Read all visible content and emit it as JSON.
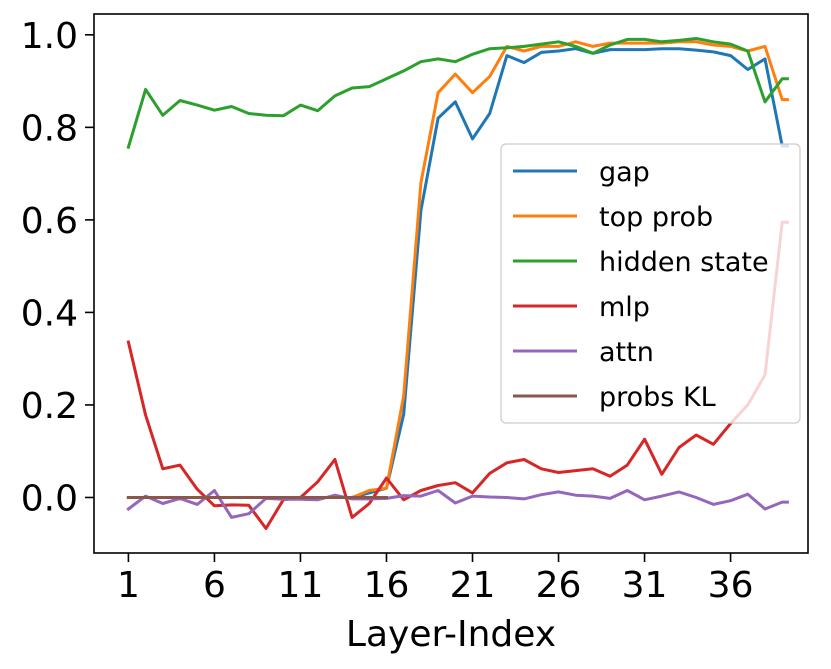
{
  "chart_data": {
    "type": "line",
    "title": "",
    "xlabel": "Layer-Index",
    "ylabel": "",
    "xlim": [
      -1,
      40.5
    ],
    "ylim": [
      -0.12,
      1.045
    ],
    "xticks": [
      1,
      6,
      11,
      16,
      21,
      26,
      31,
      36
    ],
    "yticks": [
      0.0,
      0.2,
      0.4,
      0.6,
      0.8,
      1.0
    ],
    "ytick_labels": [
      "0.0",
      "0.2",
      "0.4",
      "0.6",
      "0.8",
      "1.0"
    ],
    "grid": false,
    "legend_position": "center-right",
    "x": [
      1,
      2,
      3,
      4,
      5,
      6,
      7,
      8,
      9,
      10,
      11,
      12,
      13,
      14,
      15,
      16,
      17,
      18,
      19,
      20,
      21,
      22,
      23,
      24,
      25,
      26,
      27,
      28,
      29,
      30,
      31,
      32,
      33,
      34,
      35,
      36,
      37,
      38,
      39,
      40
    ],
    "series": [
      {
        "name": "gap",
        "color": "#1f77b4",
        "values": [
          0,
          0,
          0,
          0,
          0,
          0,
          0,
          0,
          0,
          0,
          0,
          0,
          0,
          0,
          0.01,
          0.02,
          0.18,
          0.62,
          0.82,
          0.855,
          0.775,
          0.83,
          0.955,
          0.94,
          0.962,
          0.965,
          0.97,
          0.96,
          0.968,
          0.968,
          0.968,
          0.97,
          0.97,
          0.967,
          0.963,
          0.955,
          0.925,
          0.948,
          0.76,
          0.76
        ]
      },
      {
        "name": "top prob",
        "color": "#ff7f0e",
        "values": [
          0,
          0,
          0,
          0,
          0,
          0,
          0,
          0,
          0,
          0,
          0,
          0,
          0,
          0,
          0.015,
          0.02,
          0.22,
          0.68,
          0.875,
          0.915,
          0.875,
          0.91,
          0.975,
          0.965,
          0.975,
          0.975,
          0.985,
          0.975,
          0.982,
          0.982,
          0.982,
          0.982,
          0.985,
          0.985,
          0.978,
          0.975,
          0.965,
          0.975,
          0.86,
          0.86
        ]
      },
      {
        "name": "hidden state",
        "color": "#2ca02c",
        "values": [
          0.757,
          0.882,
          0.826,
          0.858,
          0.848,
          0.837,
          0.845,
          0.83,
          0.826,
          0.825,
          0.848,
          0.836,
          0.868,
          0.885,
          0.888,
          0.905,
          0.922,
          0.942,
          0.948,
          0.942,
          0.958,
          0.97,
          0.972,
          0.975,
          0.98,
          0.985,
          0.975,
          0.96,
          0.978,
          0.99,
          0.99,
          0.985,
          0.988,
          0.992,
          0.985,
          0.98,
          0.965,
          0.855,
          0.905,
          0.905
        ]
      },
      {
        "name": "mlp",
        "color": "#d62728",
        "values": [
          0.336,
          0.178,
          0.062,
          0.07,
          0.018,
          -0.018,
          -0.016,
          -0.017,
          -0.067,
          -0.005,
          0.0,
          0.034,
          0.082,
          -0.043,
          -0.013,
          0.042,
          -0.005,
          0.015,
          0.026,
          0.032,
          0.01,
          0.052,
          0.075,
          0.082,
          0.062,
          0.054,
          0.058,
          0.062,
          0.046,
          0.07,
          0.126,
          0.05,
          0.108,
          0.135,
          0.115,
          0.16,
          0.2,
          0.265,
          0.595,
          0.595
        ]
      },
      {
        "name": "attn",
        "color": "#9467bd",
        "values": [
          -0.025,
          0.003,
          -0.013,
          -0.002,
          -0.015,
          0.015,
          -0.043,
          -0.035,
          -0.002,
          -0.004,
          -0.004,
          -0.005,
          0.005,
          -0.003,
          -0.003,
          -0.002,
          0.004,
          0.003,
          0.015,
          -0.012,
          0.003,
          0.001,
          0.0,
          -0.003,
          0.006,
          0.012,
          0.005,
          0.003,
          -0.002,
          0.015,
          -0.005,
          0.003,
          0.012,
          0.0,
          -0.015,
          -0.007,
          0.007,
          -0.025,
          -0.01,
          -0.01
        ]
      },
      {
        "name": "probs KL",
        "color": "#8c564b",
        "values": [
          0,
          0,
          0,
          0,
          0,
          0,
          0,
          0,
          0,
          0,
          0,
          0,
          0,
          0,
          0,
          0,
          null,
          null,
          null,
          null,
          null,
          null,
          null,
          null,
          null,
          null,
          null,
          null,
          null,
          null,
          null,
          null,
          null,
          null,
          null,
          null,
          null,
          null,
          null,
          null
        ]
      }
    ],
    "visible_x_max": 39.3
  }
}
